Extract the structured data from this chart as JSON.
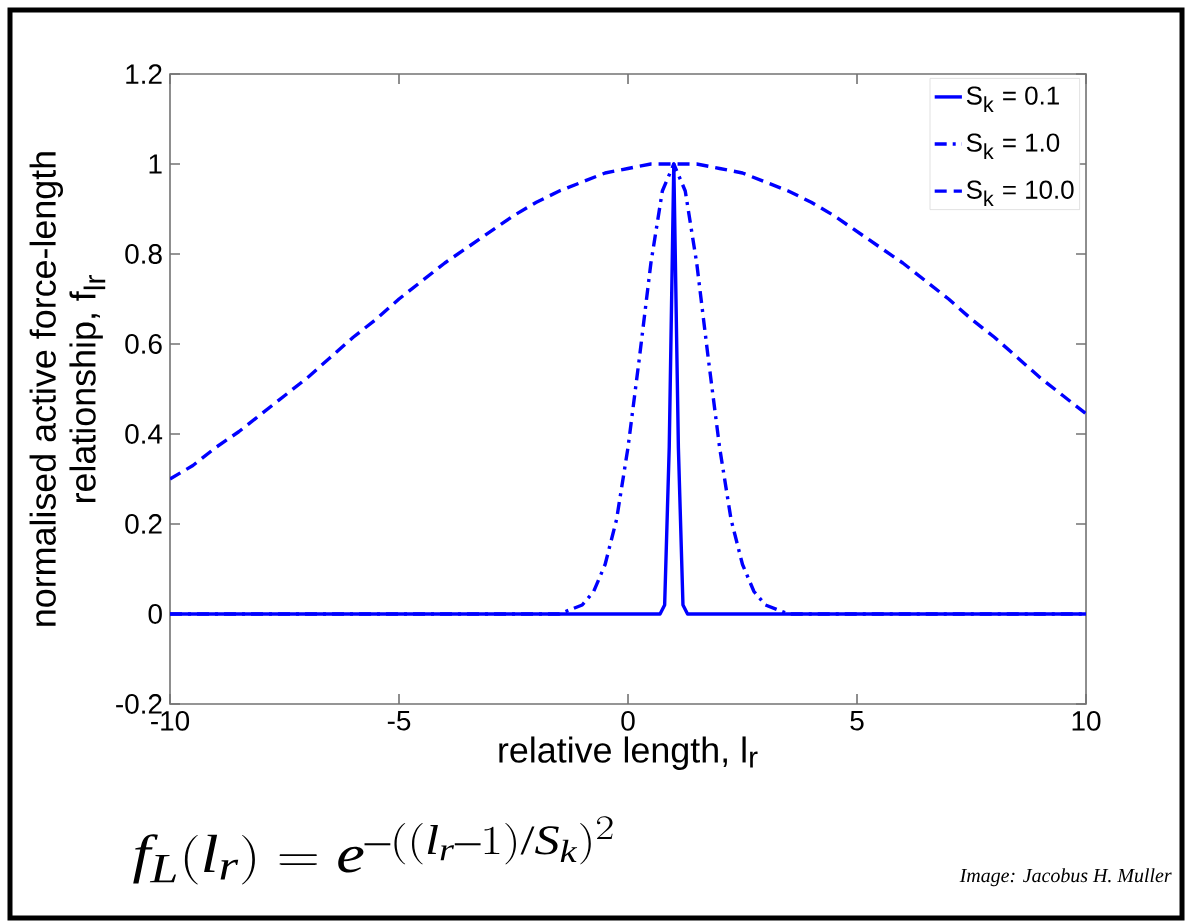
{
  "chart_data": {
    "type": "line",
    "xlabel": "relative length, l$_{r}$",
    "ylabel": "normalised active force-length relationship, f$_{lr}$",
    "xlim": [
      -10,
      10
    ],
    "ylim": [
      -0.2,
      1.2
    ],
    "xticks": [
      -10,
      -5,
      0,
      5,
      10
    ],
    "yticks": [
      -0.2,
      0,
      0.2,
      0.4,
      0.6,
      0.8,
      1,
      1.2
    ],
    "legend": "top right",
    "annotations": [
      "f_L(l_r) = e^{-((l_r-1)/S_k)^2}",
      "Image: Jacobus H. Muller"
    ],
    "series": [
      {
        "name": "S$_{k}$ = 0.1",
        "color": "#0000ff",
        "line_style": "solid",
        "x": [
          -10,
          0.7,
          0.8,
          0.9,
          1,
          1.1,
          1.2,
          1.3,
          10
        ],
        "values": [
          0,
          0,
          0.02,
          0.37,
          1,
          0.37,
          0.02,
          0,
          0
        ]
      },
      {
        "name": "S$_{k}$ = 1.0",
        "color": "#0000ff",
        "line_style": "dashdot",
        "x": [
          -10,
          -1.5,
          -1.25,
          -1,
          -0.75,
          -0.5,
          -0.25,
          0,
          0.25,
          0.5,
          0.75,
          1,
          1.25,
          1.5,
          1.75,
          2,
          2.25,
          2.5,
          2.75,
          3,
          3.25,
          3.5,
          10
        ],
        "values": [
          0,
          0,
          0.01,
          0.02,
          0.05,
          0.11,
          0.21,
          0.37,
          0.57,
          0.78,
          0.94,
          1,
          0.94,
          0.78,
          0.57,
          0.37,
          0.21,
          0.11,
          0.05,
          0.02,
          0.01,
          0,
          0
        ]
      },
      {
        "name": "S$_{k}$ = 10.0",
        "color": "#0000ff",
        "line_style": "dashed",
        "x": [
          -10,
          -9.5,
          -9,
          -8.5,
          -8,
          -7.5,
          -7,
          -6.5,
          -6,
          -5.5,
          -5,
          -4.5,
          -4,
          -3.5,
          -3,
          -2.5,
          -2,
          -1.5,
          -1,
          -0.5,
          0,
          0.5,
          1,
          1.5,
          2,
          2.5,
          3,
          3.5,
          4,
          4.5,
          5,
          5.5,
          6,
          6.5,
          7,
          7.5,
          8,
          8.5,
          9,
          9.5,
          10
        ],
        "values": [
          0.3,
          0.33,
          0.37,
          0.405,
          0.445,
          0.485,
          0.525,
          0.57,
          0.615,
          0.655,
          0.7,
          0.74,
          0.78,
          0.815,
          0.85,
          0.885,
          0.915,
          0.94,
          0.96,
          0.98,
          0.99,
          1,
          1,
          1,
          0.99,
          0.98,
          0.96,
          0.94,
          0.915,
          0.885,
          0.85,
          0.815,
          0.78,
          0.74,
          0.7,
          0.655,
          0.615,
          0.57,
          0.525,
          0.485,
          0.445
        ]
      }
    ]
  }
}
